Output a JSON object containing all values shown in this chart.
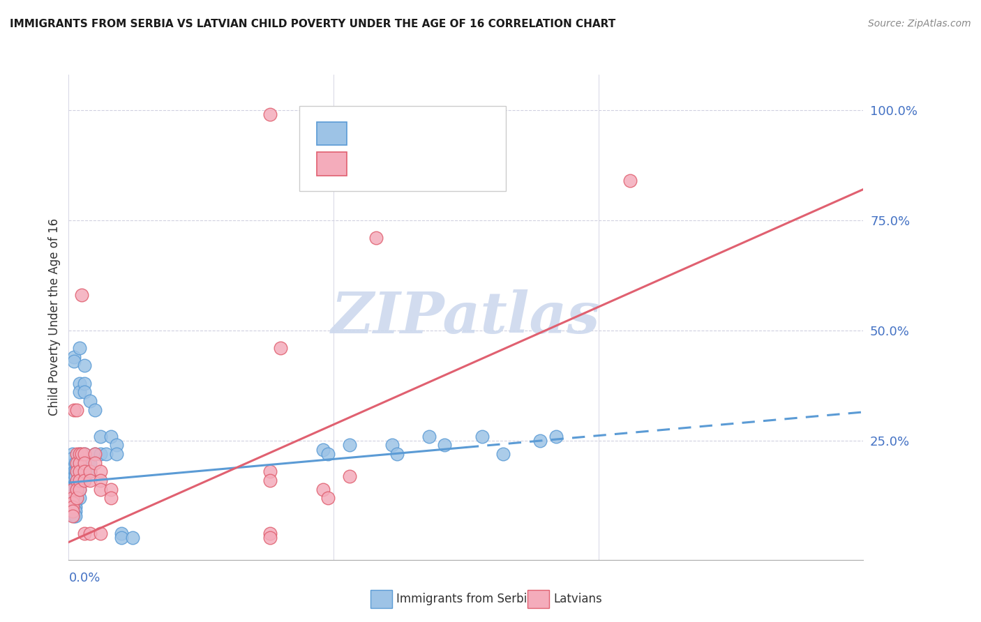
{
  "title": "IMMIGRANTS FROM SERBIA VS LATVIAN CHILD POVERTY UNDER THE AGE OF 16 CORRELATION CHART",
  "source": "Source: ZipAtlas.com",
  "ylabel": "Child Poverty Under the Age of 16",
  "x_range": [
    0,
    0.15
  ],
  "y_range": [
    -0.02,
    1.08
  ],
  "y_ticks": [
    0.0,
    0.25,
    0.5,
    0.75,
    1.0
  ],
  "y_tick_labels": [
    "",
    "25.0%",
    "50.0%",
    "75.0%",
    "100.0%"
  ],
  "blue_scatter": [
    [
      0.0008,
      0.22
    ],
    [
      0.0008,
      0.21
    ],
    [
      0.001,
      0.44
    ],
    [
      0.001,
      0.43
    ],
    [
      0.001,
      0.19
    ],
    [
      0.001,
      0.18
    ],
    [
      0.001,
      0.17
    ],
    [
      0.001,
      0.16
    ],
    [
      0.001,
      0.15
    ],
    [
      0.001,
      0.14
    ],
    [
      0.001,
      0.13
    ],
    [
      0.001,
      0.12
    ],
    [
      0.001,
      0.11
    ],
    [
      0.001,
      0.1
    ],
    [
      0.001,
      0.09
    ],
    [
      0.001,
      0.08
    ],
    [
      0.0012,
      0.2
    ],
    [
      0.0012,
      0.18
    ],
    [
      0.0012,
      0.17
    ],
    [
      0.0012,
      0.15
    ],
    [
      0.0012,
      0.14
    ],
    [
      0.0012,
      0.13
    ],
    [
      0.0012,
      0.12
    ],
    [
      0.0012,
      0.11
    ],
    [
      0.0012,
      0.1
    ],
    [
      0.0012,
      0.09
    ],
    [
      0.0012,
      0.08
    ],
    [
      0.002,
      0.46
    ],
    [
      0.002,
      0.38
    ],
    [
      0.002,
      0.36
    ],
    [
      0.002,
      0.22
    ],
    [
      0.002,
      0.2
    ],
    [
      0.002,
      0.18
    ],
    [
      0.002,
      0.16
    ],
    [
      0.002,
      0.14
    ],
    [
      0.002,
      0.12
    ],
    [
      0.003,
      0.42
    ],
    [
      0.003,
      0.38
    ],
    [
      0.003,
      0.36
    ],
    [
      0.003,
      0.22
    ],
    [
      0.003,
      0.2
    ],
    [
      0.003,
      0.18
    ],
    [
      0.004,
      0.34
    ],
    [
      0.004,
      0.2
    ],
    [
      0.004,
      0.18
    ],
    [
      0.005,
      0.32
    ],
    [
      0.005,
      0.22
    ],
    [
      0.006,
      0.26
    ],
    [
      0.006,
      0.22
    ],
    [
      0.007,
      0.22
    ],
    [
      0.008,
      0.26
    ],
    [
      0.009,
      0.24
    ],
    [
      0.009,
      0.22
    ],
    [
      0.01,
      0.04
    ],
    [
      0.01,
      0.03
    ],
    [
      0.012,
      0.03
    ],
    [
      0.048,
      0.23
    ],
    [
      0.049,
      0.22
    ],
    [
      0.053,
      0.24
    ],
    [
      0.061,
      0.24
    ],
    [
      0.062,
      0.22
    ],
    [
      0.068,
      0.26
    ],
    [
      0.071,
      0.24
    ],
    [
      0.078,
      0.26
    ],
    [
      0.082,
      0.22
    ],
    [
      0.089,
      0.25
    ],
    [
      0.092,
      0.26
    ]
  ],
  "pink_scatter": [
    [
      0.0008,
      0.14
    ],
    [
      0.0008,
      0.12
    ],
    [
      0.0008,
      0.11
    ],
    [
      0.0008,
      0.1
    ],
    [
      0.0008,
      0.09
    ],
    [
      0.0008,
      0.08
    ],
    [
      0.001,
      0.32
    ],
    [
      0.0015,
      0.32
    ],
    [
      0.0015,
      0.22
    ],
    [
      0.0015,
      0.2
    ],
    [
      0.0015,
      0.18
    ],
    [
      0.0015,
      0.16
    ],
    [
      0.0015,
      0.14
    ],
    [
      0.0015,
      0.12
    ],
    [
      0.002,
      0.22
    ],
    [
      0.002,
      0.2
    ],
    [
      0.002,
      0.18
    ],
    [
      0.002,
      0.16
    ],
    [
      0.002,
      0.14
    ],
    [
      0.0025,
      0.58
    ],
    [
      0.0025,
      0.22
    ],
    [
      0.003,
      0.22
    ],
    [
      0.003,
      0.2
    ],
    [
      0.003,
      0.18
    ],
    [
      0.003,
      0.16
    ],
    [
      0.003,
      0.04
    ],
    [
      0.004,
      0.18
    ],
    [
      0.004,
      0.16
    ],
    [
      0.004,
      0.04
    ],
    [
      0.005,
      0.22
    ],
    [
      0.005,
      0.2
    ],
    [
      0.006,
      0.18
    ],
    [
      0.006,
      0.16
    ],
    [
      0.006,
      0.14
    ],
    [
      0.006,
      0.04
    ],
    [
      0.008,
      0.14
    ],
    [
      0.008,
      0.12
    ],
    [
      0.038,
      0.18
    ],
    [
      0.038,
      0.16
    ],
    [
      0.04,
      0.46
    ],
    [
      0.048,
      0.14
    ],
    [
      0.049,
      0.12
    ],
    [
      0.053,
      0.17
    ],
    [
      0.058,
      0.71
    ],
    [
      0.106,
      0.84
    ],
    [
      0.038,
      0.99
    ],
    [
      0.038,
      0.04
    ],
    [
      0.038,
      0.03
    ]
  ],
  "blue_solid_line": [
    [
      0.0,
      0.155
    ],
    [
      0.075,
      0.235
    ]
  ],
  "blue_dashed_line": [
    [
      0.075,
      0.235
    ],
    [
      0.15,
      0.315
    ]
  ],
  "pink_line": [
    [
      0.0,
      0.02
    ],
    [
      0.15,
      0.82
    ]
  ],
  "blue_color": "#5b9bd5",
  "blue_scatter_color": "#9dc3e6",
  "pink_color": "#e06070",
  "pink_scatter_color": "#f4acbb",
  "bg_color": "#ffffff",
  "grid_color": "#d0d0e0",
  "title_color": "#1a1a1a",
  "axis_label_color": "#4472c4",
  "watermark_color": "#cdd9ee"
}
